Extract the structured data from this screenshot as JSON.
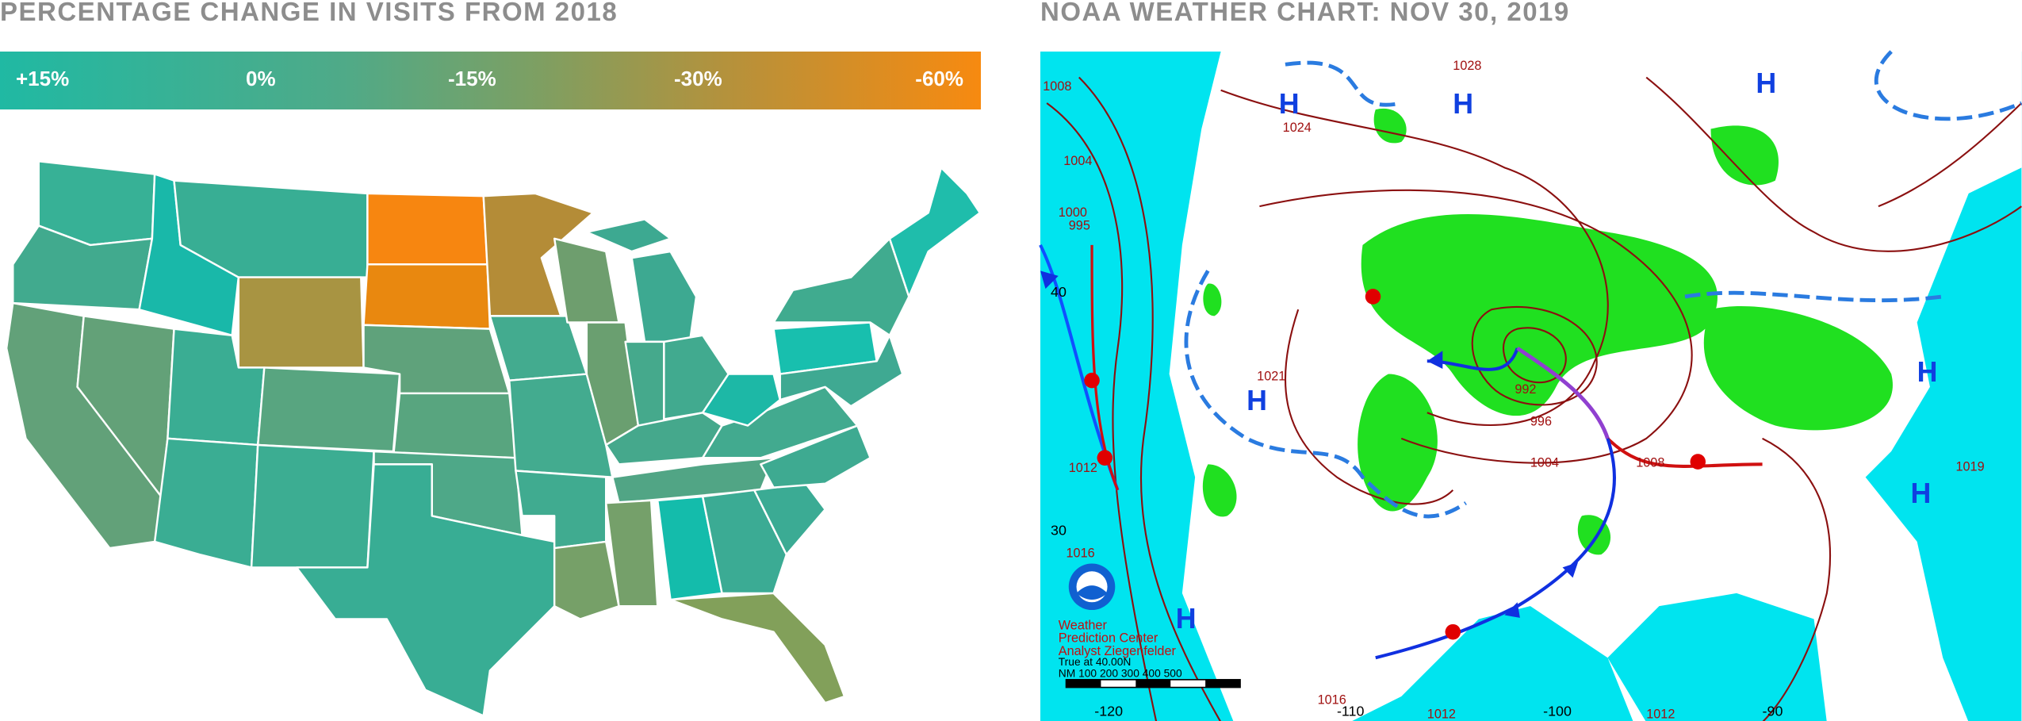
{
  "left_panel": {
    "title": "PERCENTAGE CHANGE IN VISITS FROM 2018",
    "legend": {
      "labels": [
        "+15%",
        "0%",
        "-15%",
        "-30%",
        "-60%"
      ]
    }
  },
  "right_panel": {
    "title": "NOAA WEATHER CHART: NOV 30, 2019",
    "pressure_labels": [
      "1008",
      "1004",
      "1000",
      "995",
      "1028",
      "1024",
      "1021",
      "992",
      "996",
      "1004",
      "1008",
      "1019",
      "1012",
      "1016",
      "1016",
      "1012",
      "1012"
    ],
    "highs": [
      "H",
      "H",
      "H",
      "H",
      "H",
      "H",
      "H"
    ],
    "latitude_labels": [
      "40",
      "30"
    ],
    "longitude_labels": [
      "-120",
      "-110",
      "-100",
      "-90"
    ],
    "credit": [
      "Weather",
      "Prediction Center",
      "Analyst Ziegenfelder"
    ],
    "scale": {
      "caption": "True at 40.00N",
      "units": "NM  100  200  300  400  500"
    }
  }
}
